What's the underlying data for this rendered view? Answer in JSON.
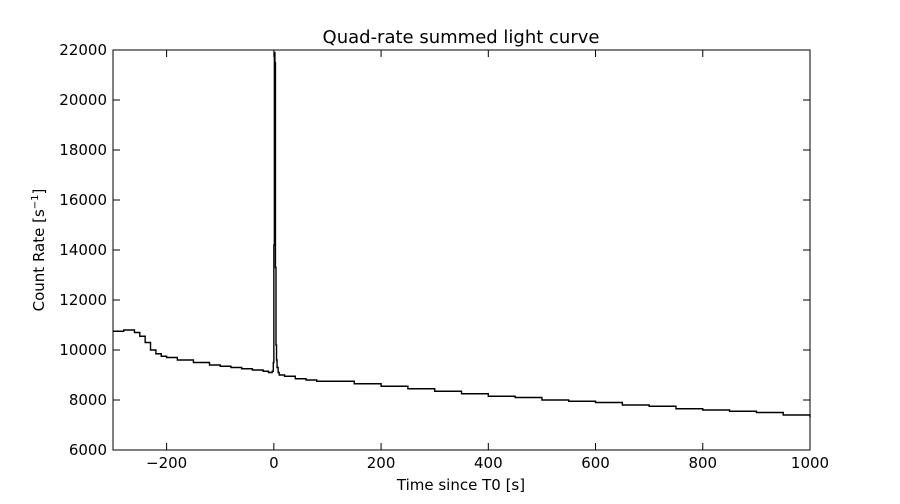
{
  "chart_data": {
    "type": "line",
    "title": "Quad-rate summed light curve",
    "xlabel": "Time since T0 [s]",
    "ylabel_main": "Count Rate [s",
    "ylabel_sup": "−1",
    "ylabel_end": "]",
    "xlim": [
      -300,
      1000
    ],
    "ylim": [
      6000,
      22000
    ],
    "xticks": [
      -200,
      0,
      200,
      400,
      600,
      800,
      1000
    ],
    "xtick_labels": [
      "−200",
      "0",
      "200",
      "400",
      "600",
      "800",
      "1000"
    ],
    "yticks": [
      6000,
      8000,
      10000,
      12000,
      14000,
      16000,
      18000,
      20000,
      22000
    ],
    "ytick_labels": [
      "6000",
      "8000",
      "10000",
      "12000",
      "14000",
      "16000",
      "18000",
      "20000",
      "22000"
    ],
    "grid": false,
    "series": [
      {
        "color": "#000000",
        "x": [
          -300,
          -280,
          -260,
          -250,
          -240,
          -230,
          -220,
          -210,
          -200,
          -180,
          -150,
          -120,
          -100,
          -80,
          -60,
          -40,
          -20,
          -10,
          -5,
          -3,
          -1,
          0,
          1,
          2,
          3,
          4,
          5,
          6,
          8,
          10,
          20,
          40,
          60,
          80,
          100,
          150,
          200,
          250,
          300,
          350,
          400,
          450,
          500,
          550,
          600,
          650,
          700,
          750,
          800,
          850,
          900,
          950,
          1000
        ],
        "y": [
          10750,
          10800,
          10700,
          10550,
          10300,
          10000,
          9850,
          9750,
          9700,
          9600,
          9500,
          9400,
          9350,
          9300,
          9250,
          9200,
          9150,
          9100,
          9100,
          9150,
          9500,
          14200,
          21900,
          21500,
          13300,
          10200,
          9600,
          9300,
          9100,
          9000,
          8950,
          8850,
          8800,
          8750,
          8750,
          8650,
          8550,
          8450,
          8350,
          8250,
          8150,
          8100,
          8000,
          7950,
          7900,
          7800,
          7750,
          7650,
          7600,
          7550,
          7500,
          7400,
          7300
        ]
      }
    ]
  }
}
